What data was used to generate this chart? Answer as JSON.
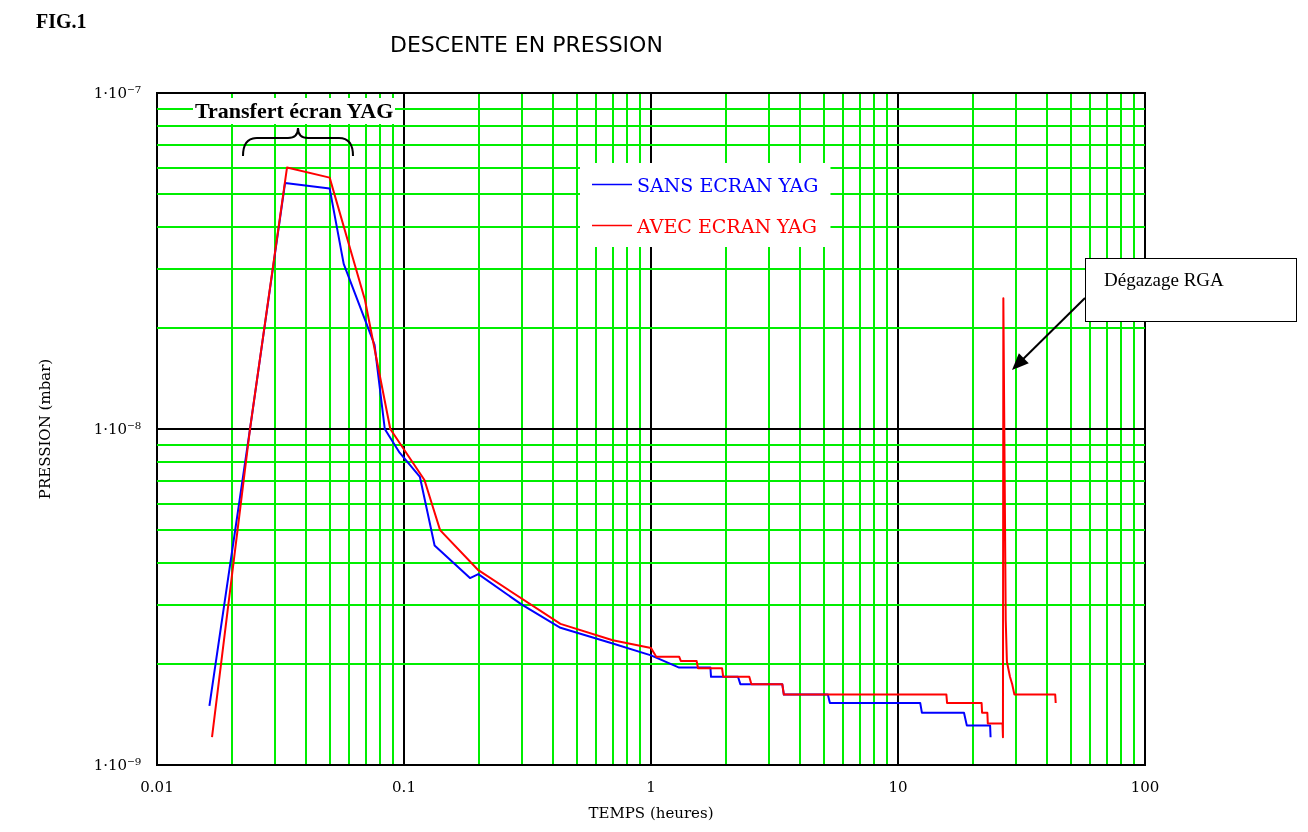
{
  "chart_data": {
    "type": "line",
    "title": "DESCENTE EN PRESSION",
    "xlabel": "TEMPS (heures)",
    "ylabel": "PRESSION (mbar)",
    "annotations": [
      "FIG.1",
      "Transfert écran YAG",
      "Dégazage RGA"
    ],
    "log": "xy",
    "grid": true,
    "legend": "top",
    "xlim": [
      0.01,
      100
    ],
    "ylim": [
      1e-09,
      1e-07
    ],
    "xticks": [
      0.01,
      {
        "value": 0.02,
        "label": null
      },
      {
        "value": 0.03,
        "label": null
      },
      {
        "value": 0.04,
        "label": null
      },
      {
        "value": 0.05,
        "label": null
      },
      {
        "value": 0.06,
        "label": null
      },
      {
        "value": 0.07,
        "label": null
      },
      {
        "value": 0.08,
        "label": null
      },
      {
        "value": 0.09,
        "label": null
      },
      0.1,
      {
        "value": 0.2,
        "label": null
      },
      {
        "value": 0.3,
        "label": null
      },
      {
        "value": 0.4,
        "label": null
      },
      {
        "value": 0.5,
        "label": null
      },
      {
        "value": 0.6,
        "label": null
      },
      {
        "value": 0.7,
        "label": null
      },
      {
        "value": 0.8,
        "label": null
      },
      {
        "value": 0.9,
        "label": null
      },
      1,
      {
        "value": 2,
        "label": null
      },
      {
        "value": 3,
        "label": null
      },
      {
        "value": 4,
        "label": null
      },
      {
        "value": 5,
        "label": null
      },
      {
        "value": 6,
        "label": null
      },
      {
        "value": 7,
        "label": null
      },
      {
        "value": 8,
        "label": null
      },
      {
        "value": 9,
        "label": null
      },
      10,
      {
        "value": 20,
        "label": null
      },
      {
        "value": 30,
        "label": null
      },
      {
        "value": 40,
        "label": null
      },
      {
        "value": 50,
        "label": null
      },
      {
        "value": 60,
        "label": null
      },
      {
        "value": 70,
        "label": null
      },
      {
        "value": 80,
        "label": null
      },
      {
        "value": 90,
        "label": null
      },
      100
    ],
    "yticks": [
      {
        "value": 1e-09,
        "label": "1·10⁻⁹"
      },
      {
        "value": 2e-09,
        "label": null
      },
      {
        "value": 3e-09,
        "label": null
      },
      {
        "value": 4e-09,
        "label": null
      },
      {
        "value": 5e-09,
        "label": null
      },
      {
        "value": 6e-09,
        "label": null
      },
      {
        "value": 7e-09,
        "label": null
      },
      {
        "value": 8e-09,
        "label": null
      },
      {
        "value": 9e-09,
        "label": null
      },
      {
        "value": 1e-08,
        "label": "1·10⁻⁸"
      },
      {
        "value": 2e-08,
        "label": null
      },
      {
        "value": 3e-08,
        "label": null
      },
      {
        "value": 4e-08,
        "label": null
      },
      {
        "value": 5e-08,
        "label": null
      },
      {
        "value": 6e-08,
        "label": null
      },
      {
        "value": 7e-08,
        "label": null
      },
      {
        "value": 8e-08,
        "label": null
      },
      {
        "value": 9e-08,
        "label": null
      },
      {
        "value": 1e-07,
        "label": "1·10⁻⁷"
      }
    ],
    "series": [
      {
        "name": "SANS ECRAN YAG",
        "color": "#0000ff",
        "x": [
          0.0163,
          0.0238,
          0.033,
          0.05,
          0.057,
          0.076,
          0.0836,
          0.096,
          0.116,
          0.133,
          0.185,
          0.2,
          0.3,
          0.43,
          0.7,
          1.0,
          1.3,
          1.74,
          1.75,
          2.25,
          2.3,
          3.4,
          3.45,
          5.2,
          5.3,
          12.3,
          12.5,
          18.5,
          19,
          23.6,
          23.7
        ],
        "values": [
          1.5e-09,
          1e-08,
          5.4e-08,
          5.2e-08,
          3.1e-08,
          1.78e-08,
          1e-08,
          8.5e-09,
          7.2e-09,
          4.5e-09,
          3.6e-09,
          3.7e-09,
          3e-09,
          2.56e-09,
          2.3e-09,
          2.12e-09,
          1.95e-09,
          1.95e-09,
          1.83e-09,
          1.83e-09,
          1.74e-09,
          1.74e-09,
          1.62e-09,
          1.62e-09,
          1.53e-09,
          1.53e-09,
          1.43e-09,
          1.43e-09,
          1.31e-09,
          1.31e-09,
          1.21e-09
        ]
      },
      {
        "name": "AVEC ECRAN YAG",
        "color": "#ff0000",
        "x": [
          0.0167,
          0.0238,
          0.0336,
          0.05,
          0.0695,
          0.088,
          0.121,
          0.14,
          0.2,
          0.43,
          0.7,
          1.0,
          1.05,
          1.3,
          1.32,
          1.53,
          1.55,
          1.94,
          1.96,
          2.5,
          2.55,
          3.4,
          3.45,
          15.7,
          15.8,
          21.8,
          21.9,
          23,
          23.1,
          26.5,
          26.6,
          26.7,
          27.3,
          27.6,
          28.4,
          29.0,
          29.6,
          43.3,
          43.5
        ],
        "values": [
          1.21e-09,
          1e-08,
          6e-08,
          5.6e-08,
          2.42e-08,
          1e-08,
          7.05e-09,
          5e-09,
          3.8e-09,
          2.63e-09,
          2.35e-09,
          2.23e-09,
          2.1e-09,
          2.1e-09,
          2.04e-09,
          2.04e-09,
          1.94e-09,
          1.94e-09,
          1.83e-09,
          1.83e-09,
          1.74e-09,
          1.74e-09,
          1.62e-09,
          1.62e-09,
          1.53e-09,
          1.53e-09,
          1.43e-09,
          1.43e-09,
          1.33e-09,
          1.33e-09,
          1.21e-09,
          2.45e-08,
          2.7e-09,
          2.03e-09,
          1.83e-09,
          1.74e-09,
          1.62e-09,
          1.62e-09,
          1.53e-09
        ]
      }
    ]
  }
}
